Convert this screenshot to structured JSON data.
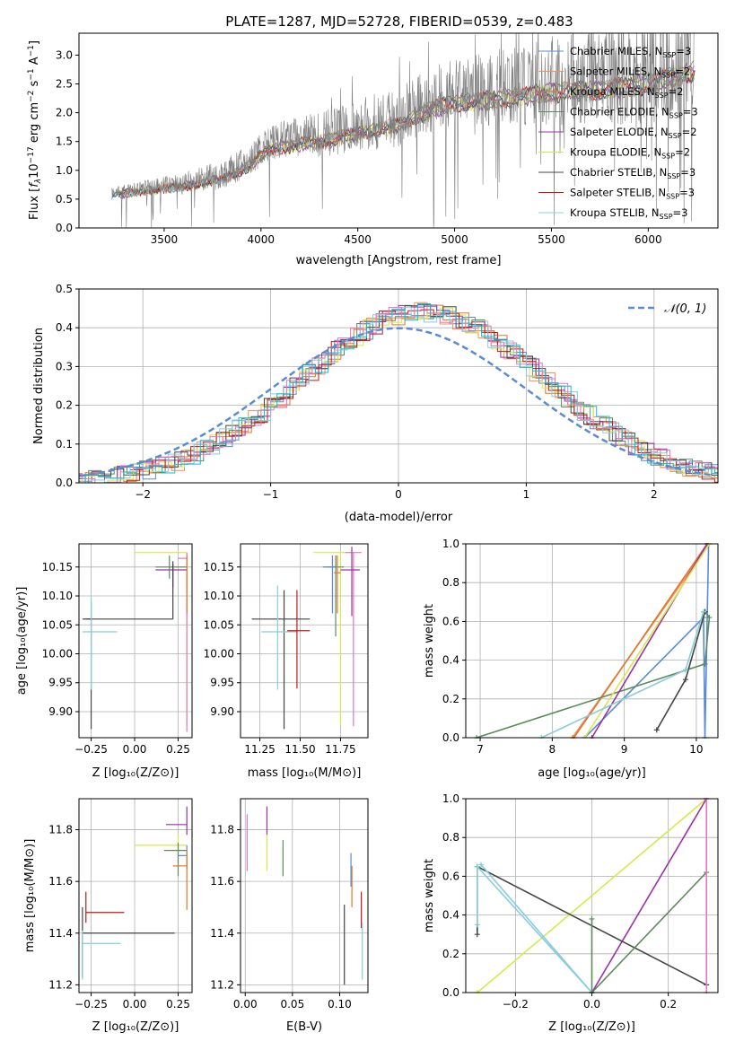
{
  "figure": {
    "background": "#ffffff"
  },
  "chart_data": [
    {
      "id": "spectrum",
      "type": "line",
      "title": "PLATE=1287, MJD=52728, FIBERID=0539, z=0.483",
      "xlabel": "wavelength [Angstrom, rest frame]",
      "ylabel_prefix": "Flux [",
      "ylabel_f": "f",
      "ylabel_lambda": "λ",
      "ylabel_mid": "10",
      "ylabel_exp1": "−17",
      "ylabel_unit": " erg cm",
      "ylabel_exp2": "−2",
      "ylabel_s": " s",
      "ylabel_exp3": "−1",
      "ylabel_A": " A",
      "ylabel_exp4": "−1",
      "ylabel_close": "]",
      "xlim": [
        3060,
        6360
      ],
      "ylim": [
        0,
        3.38
      ],
      "xticks": [
        3500,
        4000,
        4500,
        5000,
        5500,
        6000
      ],
      "yticks": [
        0.0,
        0.5,
        1.0,
        1.5,
        2.0,
        2.5,
        3.0
      ],
      "ytick_labels": [
        "0.0",
        "0.5",
        "1.0",
        "1.5",
        "2.0",
        "2.5",
        "3.0"
      ],
      "grid": false,
      "legend_position": "top-right",
      "data_color": "#7f7f7f",
      "data_range": [
        3230,
        6240
      ],
      "continuum": [
        [
          3230,
          0.62
        ],
        [
          3400,
          0.7
        ],
        [
          3600,
          0.78
        ],
        [
          3800,
          0.92
        ],
        [
          3950,
          1.18
        ],
        [
          4000,
          1.38
        ],
        [
          4100,
          1.52
        ],
        [
          4300,
          1.62
        ],
        [
          4500,
          1.78
        ],
        [
          4700,
          1.92
        ],
        [
          4850,
          2.2
        ],
        [
          5000,
          2.35
        ],
        [
          5200,
          2.42
        ],
        [
          5500,
          2.55
        ],
        [
          5800,
          2.62
        ],
        [
          6000,
          2.72
        ],
        [
          6240,
          2.95
        ]
      ],
      "series": [
        {
          "name": "Chabrier MILES",
          "nssp": "3",
          "color": "#5a8ad6"
        },
        {
          "name": "Salpeter MILES",
          "nssp": "2",
          "color": "#ff8a5c"
        },
        {
          "name": "Kroupa MILES",
          "nssp": "2",
          "color": "#e07828"
        },
        {
          "name": "Chabrier ELODIE",
          "nssp": "3",
          "color": "#5d8a5d"
        },
        {
          "name": "Salpeter ELODIE",
          "nssp": "2",
          "color": "#9c30a8"
        },
        {
          "name": "Kroupa ELODIE",
          "nssp": "2",
          "color": "#d8e84a"
        },
        {
          "name": "Chabrier STELIB",
          "nssp": "3",
          "color": "#444444"
        },
        {
          "name": "Salpeter STELIB",
          "nssp": "3",
          "color": "#c01818"
        },
        {
          "name": "Kroupa STELIB",
          "nssp": "3",
          "color": "#88ccdd"
        }
      ],
      "legend_label_sub": "SSP",
      "legend_label_N": "N"
    },
    {
      "id": "residuals",
      "type": "bar",
      "xlabel": "(data-model)/error",
      "ylabel": "Normed distribution",
      "xlim": [
        -2.5,
        2.5
      ],
      "ylim": [
        0,
        0.5
      ],
      "xticks": [
        -2,
        -1,
        0,
        1,
        2
      ],
      "xtick_labels": [
        "−2",
        "−1",
        "0",
        "1",
        "2"
      ],
      "yticks": [
        0.0,
        0.1,
        0.2,
        0.3,
        0.4,
        0.5
      ],
      "ytick_labels": [
        "0.0",
        "0.1",
        "0.2",
        "0.3",
        "0.4",
        "0.5"
      ],
      "grid": true,
      "legend_position": "top-right",
      "legend_label": "𝒩(0, 1)",
      "gaussian": {
        "mean": 0,
        "sigma": 1,
        "color": "#5a8ad6"
      },
      "bin_width": 0.1,
      "series_colors": [
        "#5a8ad6",
        "#ff8a5c",
        "#e07828",
        "#5d8a5d",
        "#9c30a8",
        "#d8e84a",
        "#444444",
        "#c01818",
        "#88ccdd",
        "#e377c2",
        "#17becf"
      ]
    },
    {
      "id": "age-vs-Z",
      "type": "scatter",
      "xlabel": "Z [log₁₀(Z/Z⊙)]",
      "ylabel": "age  [log₁₀(age/yr)]",
      "xlim": [
        -0.32,
        0.33
      ],
      "ylim": [
        9.855,
        10.19
      ],
      "xticks": [
        -0.25,
        0.0,
        0.25
      ],
      "xtick_labels": [
        "−0.25",
        "0.00",
        "0.25"
      ],
      "yticks": [
        9.9,
        9.95,
        10.0,
        10.05,
        10.1,
        10.15
      ],
      "ytick_labels": [
        "9.90",
        "9.95",
        "10.00",
        "10.05",
        "10.10",
        "10.15"
      ],
      "grid": true,
      "crosses": [
        {
          "x": 0.3,
          "y": 10.175,
          "xe": [
            -0.3,
            0
          ],
          "ye": [
            -0.3,
            0
          ],
          "color": "#d8e84a"
        },
        {
          "x": 0.3,
          "y": 10.165,
          "xe": [
            -0.05,
            0
          ],
          "ye": [
            -0.3,
            0.01
          ],
          "color": "#e377c2"
        },
        {
          "x": 0.22,
          "y": 10.145,
          "xe": [
            -0.1,
            0.08
          ],
          "ye": [
            -0.03,
            0.01
          ],
          "color": "#9c30a8"
        },
        {
          "x": 0.2,
          "y": 10.15,
          "xe": [
            -0.08,
            0.1
          ],
          "ye": [
            -0.02,
            0.02
          ],
          "color": "#5d8a5d"
        },
        {
          "x": 0.22,
          "y": 10.06,
          "xe": [
            -0.5,
            0
          ],
          "ye": [
            0,
            0.1
          ],
          "color": "#444444"
        },
        {
          "x": -0.25,
          "y": 10.06,
          "xe": [
            -0.05,
            0
          ],
          "ye": [
            -0.19,
            0.03
          ],
          "color": "#444444"
        },
        {
          "x": -0.25,
          "y": 10.038,
          "xe": [
            -0.05,
            0.15
          ],
          "ye": [
            -0.1,
            0.06
          ],
          "color": "#88ccdd"
        },
        {
          "x": 0.3,
          "y": 10.15,
          "xe": [
            0,
            0
          ],
          "ye": [
            -0.08,
            0.02
          ],
          "color": "#e07828"
        }
      ]
    },
    {
      "id": "age-vs-mass",
      "type": "scatter",
      "xlabel": "mass [log₁₀(M/M⊙)]",
      "xlim": [
        11.13,
        11.92
      ],
      "ylim": [
        9.855,
        10.19
      ],
      "xticks": [
        11.25,
        11.5,
        11.75
      ],
      "xtick_labels": [
        "11.25",
        "11.50",
        "11.75"
      ],
      "yticks": [
        9.9,
        9.95,
        10.0,
        10.05,
        10.1,
        10.15
      ],
      "ytick_labels": [
        "9.90",
        "9.95",
        "10.00",
        "10.05",
        "10.10",
        "10.15"
      ],
      "grid": true,
      "crosses": [
        {
          "x": 11.75,
          "y": 10.175,
          "xe": [
            -0.17,
            0.06
          ],
          "ye": [
            -0.3,
            0
          ],
          "color": "#d8e84a"
        },
        {
          "x": 11.83,
          "y": 10.175,
          "xe": [
            -0.05,
            0.05
          ],
          "ye": [
            -0.3,
            0
          ],
          "color": "#e377c2"
        },
        {
          "x": 11.82,
          "y": 10.145,
          "xe": [
            -0.07,
            0.05
          ],
          "ye": [
            -0.08,
            0.04
          ],
          "color": "#9c30a8"
        },
        {
          "x": 11.72,
          "y": 10.15,
          "xe": [
            -0.08,
            0.05
          ],
          "ye": [
            -0.12,
            0.02
          ],
          "color": "#5d8a5d"
        },
        {
          "x": 11.7,
          "y": 10.15,
          "xe": [
            -0.04,
            0.03
          ],
          "ye": [
            -0.08,
            0.02
          ],
          "color": "#5a8ad6"
        },
        {
          "x": 11.73,
          "y": 10.14,
          "xe": [
            -0.02,
            0.02
          ],
          "ye": [
            -0.07,
            0.03
          ],
          "color": "#e07828"
        },
        {
          "x": 11.4,
          "y": 10.06,
          "xe": [
            -0.2,
            0.16
          ],
          "ye": [
            -0.19,
            0.05
          ],
          "color": "#444444"
        },
        {
          "x": 11.36,
          "y": 10.038,
          "xe": [
            -0.1,
            0.12
          ],
          "ye": [
            -0.1,
            0.08
          ],
          "color": "#88ccdd"
        },
        {
          "x": 11.48,
          "y": 10.04,
          "xe": [
            -0.06,
            0.08
          ],
          "ye": [
            -0.1,
            0.07
          ],
          "color": "#c01818"
        }
      ]
    },
    {
      "id": "weight-vs-age",
      "type": "line",
      "xlabel": "age  [log₁₀(age/yr)]",
      "ylabel": "mass weight",
      "xlim": [
        6.8,
        10.3
      ],
      "ylim": [
        0,
        1
      ],
      "xticks": [
        7,
        8,
        9,
        10
      ],
      "xtick_labels": [
        "7",
        "8",
        "9",
        "10"
      ],
      "yticks": [
        0.0,
        0.2,
        0.4,
        0.6,
        0.8,
        1.0
      ],
      "ytick_labels": [
        "0.0",
        "0.2",
        "0.4",
        "0.6",
        "0.8",
        "1.0"
      ],
      "grid": true,
      "lines": [
        {
          "color": "#5a8ad6",
          "pts": [
            [
              8.45,
              0
            ],
            [
              10.1,
              0.62
            ],
            [
              10.12,
              0
            ],
            [
              10.17,
              1
            ]
          ]
        },
        {
          "color": "#ff8a5c",
          "pts": [
            [
              8.28,
              0
            ],
            [
              10.18,
              1
            ]
          ]
        },
        {
          "color": "#e07828",
          "pts": [
            [
              8.3,
              0
            ],
            [
              10.15,
              1
            ]
          ]
        },
        {
          "color": "#5d8a5d",
          "pts": [
            [
              6.95,
              0
            ],
            [
              10.12,
              0.38
            ],
            [
              10.18,
              0.62
            ],
            [
              10.12,
              0.65
            ]
          ]
        },
        {
          "color": "#9c30a8",
          "pts": [
            [
              8.55,
              0
            ],
            [
              10.15,
              1
            ]
          ]
        },
        {
          "color": "#d8e84a",
          "pts": [
            [
              8.45,
              0
            ],
            [
              10.18,
              1
            ]
          ]
        },
        {
          "color": "#444444",
          "pts": [
            [
              9.45,
              0.04
            ],
            [
              9.85,
              0.3
            ],
            [
              10.12,
              0.65
            ]
          ]
        },
        {
          "color": "#88ccdd",
          "pts": [
            [
              7.85,
              0
            ],
            [
              9.85,
              0.35
            ],
            [
              10.1,
              0.65
            ]
          ]
        }
      ]
    },
    {
      "id": "mass-vs-Z",
      "type": "scatter",
      "xlabel": "Z [log₁₀(Z/Z⊙)]",
      "ylabel": "mass [log₁₀(M/M⊙)]",
      "xlim": [
        -0.32,
        0.33
      ],
      "ylim": [
        11.17,
        11.92
      ],
      "xticks": [
        -0.25,
        0.0,
        0.25
      ],
      "xtick_labels": [
        "−0.25",
        "0.00",
        "0.25"
      ],
      "yticks": [
        11.2,
        11.4,
        11.6,
        11.8
      ],
      "ytick_labels": [
        "11.2",
        "11.4",
        "11.6",
        "11.8"
      ],
      "grid": true,
      "crosses": [
        {
          "x": 0.3,
          "y": 11.82,
          "xe": [
            -0.12,
            0
          ],
          "ye": [
            -0.04,
            0.07
          ],
          "color": "#9c30a8"
        },
        {
          "x": 0.25,
          "y": 11.74,
          "xe": [
            -0.25,
            0.05
          ],
          "ye": [
            -0.07,
            0.04
          ],
          "color": "#d8e84a"
        },
        {
          "x": 0.25,
          "y": 11.72,
          "xe": [
            -0.08,
            0.05
          ],
          "ye": [
            -0.1,
            0.03
          ],
          "color": "#5d8a5d"
        },
        {
          "x": 0.3,
          "y": 11.7,
          "xe": [
            -0.05,
            0
          ],
          "ye": [
            -0.05,
            0.04
          ],
          "color": "#5a8ad6"
        },
        {
          "x": 0.3,
          "y": 11.66,
          "xe": [
            -0.08,
            0
          ],
          "ye": [
            -0.17,
            0.06
          ],
          "color": "#e07828"
        },
        {
          "x": -0.3,
          "y": 11.4,
          "xe": [
            0,
            0.53
          ],
          "ye": [
            -0.17,
            0.1
          ],
          "color": "#444444"
        },
        {
          "x": -0.28,
          "y": 11.48,
          "xe": [
            0,
            0.22
          ],
          "ye": [
            -0.04,
            0.08
          ],
          "color": "#c01818"
        },
        {
          "x": -0.3,
          "y": 11.36,
          "xe": [
            0,
            0.22
          ],
          "ye": [
            -0.14,
            0.05
          ],
          "color": "#88ccdd"
        }
      ]
    },
    {
      "id": "mass-vs-ebv",
      "type": "scatter",
      "xlabel": "E(B-V)",
      "xlim": [
        -0.005,
        0.13
      ],
      "ylim": [
        11.17,
        11.92
      ],
      "xticks": [
        0.0,
        0.05,
        0.1
      ],
      "xtick_labels": [
        "0.00",
        "0.05",
        "0.10"
      ],
      "yticks": [
        11.2,
        11.4,
        11.6,
        11.8
      ],
      "ytick_labels": [
        "11.2",
        "11.4",
        "11.6",
        "11.8"
      ],
      "grid": true,
      "crosses": [
        {
          "x": 0.002,
          "y": 11.72,
          "xe": [
            0,
            0
          ],
          "ye": [
            -0.08,
            0.14
          ],
          "color": "#e377c2"
        },
        {
          "x": 0.023,
          "y": 11.82,
          "xe": [
            0,
            0
          ],
          "ye": [
            -0.04,
            0.07
          ],
          "color": "#9c30a8"
        },
        {
          "x": 0.023,
          "y": 11.74,
          "xe": [
            0,
            0
          ],
          "ye": [
            -0.1,
            0.04
          ],
          "color": "#d8e84a"
        },
        {
          "x": 0.04,
          "y": 11.72,
          "xe": [
            0,
            0
          ],
          "ye": [
            -0.1,
            0.04
          ],
          "color": "#5d8a5d"
        },
        {
          "x": 0.105,
          "y": 11.4,
          "xe": [
            0,
            0
          ],
          "ye": [
            -0.2,
            0.11
          ],
          "color": "#444444"
        },
        {
          "x": 0.112,
          "y": 11.66,
          "xe": [
            0,
            0
          ],
          "ye": [
            -0.08,
            0.05
          ],
          "color": "#5a8ad6"
        },
        {
          "x": 0.113,
          "y": 11.6,
          "xe": [
            0,
            0
          ],
          "ye": [
            -0.1,
            0.06
          ],
          "color": "#e07828"
        },
        {
          "x": 0.123,
          "y": 11.48,
          "xe": [
            0,
            0
          ],
          "ye": [
            -0.06,
            0.08
          ],
          "color": "#c01818"
        },
        {
          "x": 0.124,
          "y": 11.32,
          "xe": [
            0,
            0
          ],
          "ye": [
            -0.1,
            0.12
          ],
          "color": "#88ccdd"
        }
      ]
    },
    {
      "id": "weight-vs-Z",
      "type": "line",
      "xlabel": "Z [log₁₀(Z/Z⊙)]",
      "ylabel": "mass weight",
      "xlim": [
        -0.33,
        0.33
      ],
      "ylim": [
        0,
        1
      ],
      "xticks": [
        -0.2,
        0.0,
        0.2
      ],
      "xtick_labels": [
        "−0.2",
        "0.0",
        "0.2"
      ],
      "yticks": [
        0.0,
        0.2,
        0.4,
        0.6,
        0.8,
        1.0
      ],
      "ytick_labels": [
        "0.0",
        "0.2",
        "0.4",
        "0.6",
        "0.8",
        "1.0"
      ],
      "grid": true,
      "lines": [
        {
          "color": "#d8e84a",
          "pts": [
            [
              -0.3,
              0
            ],
            [
              0.3,
              1
            ]
          ]
        },
        {
          "color": "#9c30a8",
          "pts": [
            [
              0.0,
              0
            ],
            [
              0.3,
              1
            ]
          ]
        },
        {
          "color": "#444444",
          "pts": [
            [
              -0.3,
              0.3
            ],
            [
              -0.3,
              0.65
            ],
            [
              0.3,
              0.04
            ]
          ]
        },
        {
          "color": "#88ccdd",
          "pts": [
            [
              -0.3,
              0.35
            ],
            [
              -0.3,
              0.65
            ],
            [
              0.0,
              0
            ],
            [
              -0.29,
              0.66
            ]
          ]
        },
        {
          "color": "#5d8a5d",
          "pts": [
            [
              0.0,
              0
            ],
            [
              0.0,
              0.38
            ],
            [
              0.0,
              0
            ],
            [
              0.3,
              0.62
            ]
          ]
        },
        {
          "color": "#e377c2",
          "pts": [
            [
              0.3,
              0
            ],
            [
              0.3,
              1
            ]
          ]
        }
      ]
    }
  ]
}
